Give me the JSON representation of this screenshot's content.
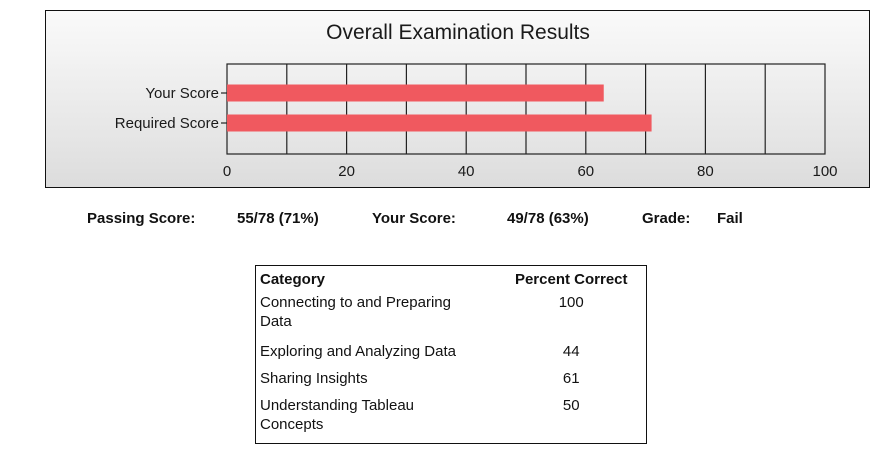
{
  "chart_data": {
    "type": "bar",
    "orientation": "horizontal",
    "title": "Overall Examination Results",
    "categories": [
      "Your Score",
      "Required Score"
    ],
    "values": [
      63,
      71
    ],
    "xlim": [
      0,
      100
    ],
    "xticks": [
      0,
      20,
      40,
      60,
      80,
      100
    ],
    "grid_step": 10,
    "grid": true,
    "bar_color": "#f0595f"
  },
  "summary": {
    "passing_label": "Passing Score:",
    "passing_value": "55/78 (71%)",
    "your_label": "Your Score:",
    "your_value": "49/78 (63%)",
    "grade_label": "Grade:",
    "grade_value": "Fail"
  },
  "table": {
    "headers": [
      "Category",
      "Percent Correct"
    ],
    "rows": [
      {
        "category_line1": "Connecting to and Preparing",
        "category_line2": "Data",
        "percent": "100"
      },
      {
        "category_line1": "Exploring and Analyzing Data",
        "category_line2": "",
        "percent": "44"
      },
      {
        "category_line1": "Sharing Insights",
        "category_line2": "",
        "percent": "61"
      },
      {
        "category_line1": "Understanding Tableau",
        "category_line2": "Concepts",
        "percent": "50"
      }
    ]
  }
}
